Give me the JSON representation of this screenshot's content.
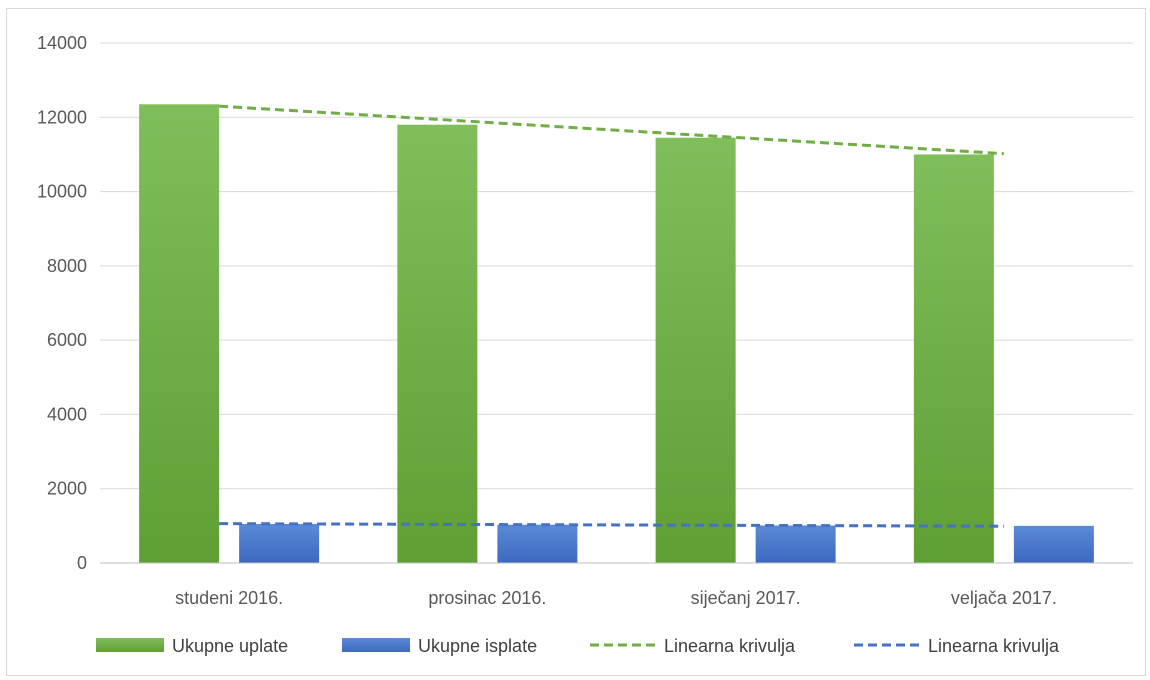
{
  "chart_data": {
    "type": "bar",
    "categories": [
      "studeni 2016.",
      "prosinac 2016.",
      "siječanj 2017.",
      "veljača 2017."
    ],
    "series": [
      {
        "name": "Ukupne uplate",
        "values": [
          12350,
          11800,
          11450,
          11000
        ],
        "color": "#70ad47"
      },
      {
        "name": "Ukupne isplate",
        "values": [
          1050,
          1030,
          1010,
          1000
        ],
        "color": "#4472c4"
      }
    ],
    "trendlines": [
      {
        "name": "Linearna krivulja",
        "series": "Ukupne uplate",
        "start": 12300,
        "end": 11020,
        "color": "#70ad47",
        "style": "dashed"
      },
      {
        "name": "Linearna krivulja",
        "series": "Ukupne isplate",
        "start": 1060,
        "end": 990,
        "color": "#4472c4",
        "style": "dashed"
      }
    ],
    "yticks": [
      0,
      2000,
      4000,
      6000,
      8000,
      10000,
      12000,
      14000
    ],
    "ylim": [
      0,
      14000
    ],
    "grid": true,
    "legend_position": "bottom",
    "title": "",
    "xlabel": "",
    "ylabel": ""
  }
}
